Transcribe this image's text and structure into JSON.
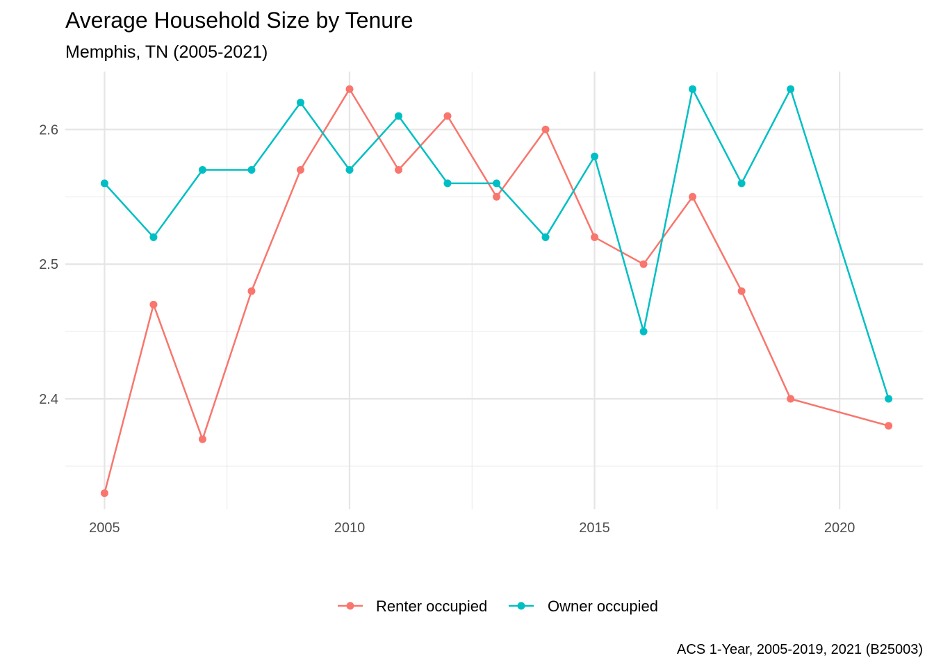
{
  "chart_data": {
    "type": "line",
    "title": "Average Household Size by Tenure",
    "subtitle": "Memphis, TN (2005-2021)",
    "caption": "ACS 1-Year, 2005-2019, 2021 (B25003)",
    "xlabel": "",
    "ylabel": "",
    "x_ticks": [
      2005,
      2010,
      2015,
      2020
    ],
    "y_ticks": [
      2.4,
      2.5,
      2.6
    ],
    "xlim": [
      2004.2,
      2021.7
    ],
    "ylim": [
      2.318,
      2.643
    ],
    "grid": true,
    "legend_position": "bottom",
    "series": [
      {
        "name": "Renter occupied",
        "color": "#F8766D",
        "x": [
          2005,
          2006,
          2007,
          2008,
          2009,
          2010,
          2011,
          2012,
          2013,
          2014,
          2015,
          2016,
          2017,
          2018,
          2019,
          2021
        ],
        "values": [
          2.33,
          2.47,
          2.37,
          2.48,
          2.57,
          2.63,
          2.57,
          2.61,
          2.55,
          2.6,
          2.52,
          2.5,
          2.55,
          2.48,
          2.4,
          2.38
        ]
      },
      {
        "name": "Owner occupied",
        "color": "#00BFC4",
        "x": [
          2005,
          2006,
          2007,
          2008,
          2009,
          2010,
          2011,
          2012,
          2013,
          2014,
          2015,
          2016,
          2017,
          2018,
          2019,
          2021
        ],
        "values": [
          2.56,
          2.52,
          2.57,
          2.57,
          2.62,
          2.57,
          2.61,
          2.56,
          2.56,
          2.52,
          2.58,
          2.45,
          2.63,
          2.56,
          2.63,
          2.4
        ]
      }
    ]
  }
}
